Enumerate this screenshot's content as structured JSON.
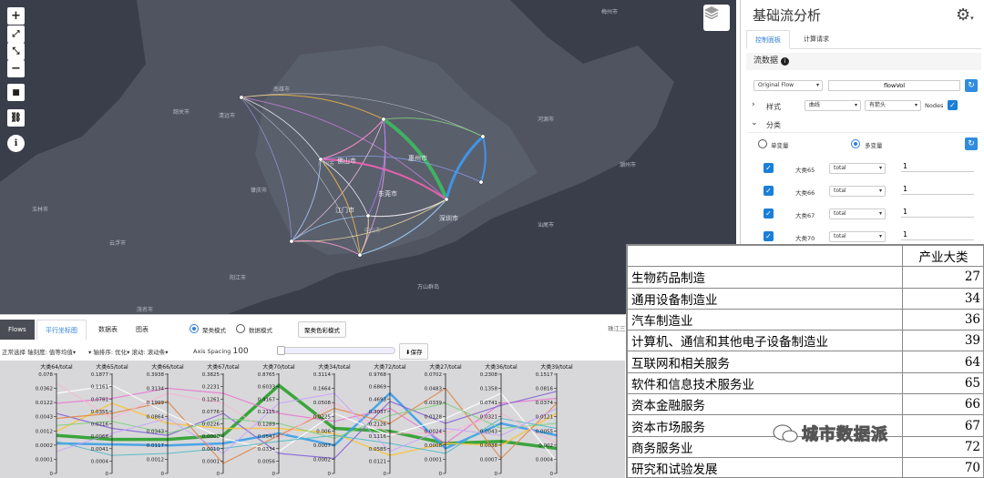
{
  "map": {
    "labels": [
      {
        "t": "韶关市",
        "cls": ""
      },
      {
        "t": "梅州市",
        "cls": ""
      },
      {
        "t": "河源市",
        "cls": ""
      },
      {
        "t": "清远市",
        "cls": ""
      },
      {
        "t": "广州市",
        "cls": ""
      },
      {
        "t": "惠州市",
        "cls": "bright"
      },
      {
        "t": "佛山市",
        "cls": "bright"
      },
      {
        "t": "肇庆市",
        "cls": ""
      },
      {
        "t": "东莞市",
        "cls": "bright"
      },
      {
        "t": "江门市",
        "cls": "bright"
      },
      {
        "t": "深圳市",
        "cls": "bright"
      },
      {
        "t": "中山市",
        "cls": ""
      },
      {
        "t": "阳江市",
        "cls": ""
      },
      {
        "t": "汕尾市",
        "cls": ""
      },
      {
        "t": "万山群岛",
        "cls": ""
      },
      {
        "t": "云浮市",
        "cls": ""
      },
      {
        "t": "玉林市",
        "cls": ""
      },
      {
        "t": "茂名市",
        "cls": ""
      },
      {
        "t": "潮州市",
        "cls": ""
      },
      {
        "t": "南雄市",
        "cls": ""
      }
    ],
    "controls": [
      "+",
      "⤢",
      "⤡",
      "−",
      "■",
      "⛓",
      "ℹ"
    ]
  },
  "panel": {
    "title": "基础流分析",
    "tabs": [
      "控制面板",
      "计算请求"
    ],
    "section_title": "流数据",
    "flow_select": "Original Flow",
    "flow_value": "flowVol",
    "style_label": "样式",
    "style_curve": "曲线",
    "style_arrow": "有箭头",
    "nodes_label": "Nodes",
    "classify_label": "分类",
    "single_var": "单变量",
    "multi_var": "多变量",
    "vars": [
      {
        "name": "大类65",
        "agg": "total",
        "weight": "1"
      },
      {
        "name": "大类66",
        "agg": "total",
        "weight": "1"
      },
      {
        "name": "大类67",
        "agg": "total",
        "weight": "1"
      },
      {
        "name": "大类70",
        "agg": "total",
        "weight": "1"
      }
    ]
  },
  "bottom": {
    "tabs": [
      "Flows",
      "平行坐标图",
      "数据表",
      "图表"
    ],
    "mode_cluster": "聚类模式",
    "mode_data": "数据模式",
    "color_mode_btn": "聚类色彩模式",
    "right_edge_text": "珠江三",
    "toolbar": {
      "select": "正常选择",
      "tick_uniform": "轴刻度: 值等均值",
      "sort": "轴排序: 优化",
      "scroll": "滚动: 滚动条",
      "spacing_label": "Axis Spacing",
      "spacing_value": "100",
      "save": "保存"
    },
    "axes": [
      {
        "name": "大类64/total",
        "ticks": [
          "0.078",
          "0.0362",
          "0.0122",
          "0.0043",
          "0.0012",
          "0.0002",
          "0.0001",
          "0"
        ]
      },
      {
        "name": "大类65/total",
        "ticks": [
          "0.1877",
          "0.1161",
          "0.0781",
          "0.0355",
          "0.0216",
          "0.0068",
          "0.0041",
          "0.0004",
          "0"
        ]
      },
      {
        "name": "大类66/total",
        "ticks": [
          "0.3938",
          "0.3134",
          "0.1999",
          "0.0864",
          "0.0343",
          "0.0117",
          "0.0012",
          "0"
        ]
      },
      {
        "name": "大类67/total",
        "ticks": [
          "0.3825",
          "0.2231",
          "0.1261",
          "0.0776",
          "0.0226",
          "0.0000",
          "0.0010",
          "0.0001",
          "0"
        ]
      },
      {
        "name": "大类70/total",
        "ticks": [
          "0.8765",
          "0.6033",
          "0.4167",
          "0.2115",
          "0.1289",
          "0.0547",
          "0.0334",
          "0.0056",
          "0"
        ]
      },
      {
        "name": "大类34/total",
        "ticks": [
          "0.3114",
          "0.1664",
          "0.0508",
          "0.0225",
          "0.006",
          "0.0007",
          "0.0002",
          "0"
        ]
      },
      {
        "name": "大类72/total",
        "ticks": [
          "0.9768",
          "0.6869",
          "0.4693",
          "0.3037",
          "0.2126",
          "0.1116",
          "0.0585",
          "0.0121",
          "0"
        ]
      },
      {
        "name": "大类27/total",
        "ticks": [
          "0.0702",
          "0.0483",
          "0.0339",
          "0.0128",
          "0.0024",
          "0.0008",
          "0.0001",
          "0"
        ]
      },
      {
        "name": "大类36/total",
        "ticks": [
          "0.2308",
          "0.1358",
          "0.0741",
          "0.0321",
          "0.0043",
          "0.0038",
          "0.0007",
          "0"
        ]
      },
      {
        "name": "大类39/total",
        "ticks": [
          "0.1517",
          "0.0816",
          "0.0374",
          "0.0121",
          "0.0055",
          "0.002",
          "0.0004",
          "0"
        ]
      }
    ]
  },
  "table": {
    "header": "产业大类",
    "rows": [
      {
        "name": "生物药品制造",
        "value": "27"
      },
      {
        "name": "通用设备制造业",
        "value": "34"
      },
      {
        "name": "汽车制造业",
        "value": "36"
      },
      {
        "name": "计算机、通信和其他电子设备制造业",
        "value": "39"
      },
      {
        "name": "互联网和相关服务",
        "value": "64"
      },
      {
        "name": "软件和信息技术服务业",
        "value": "65"
      },
      {
        "name": "资本金融服务",
        "value": "66"
      },
      {
        "name": "资本市场服务",
        "value": "67"
      },
      {
        "name": "商务服务业",
        "value": "72"
      },
      {
        "name": "研究和试验发展",
        "value": "70"
      }
    ]
  },
  "watermark": "城市数据派",
  "colors": {
    "accent": "#2f7fd8",
    "map_bg": "#3a3e4a",
    "land": "#505560"
  }
}
